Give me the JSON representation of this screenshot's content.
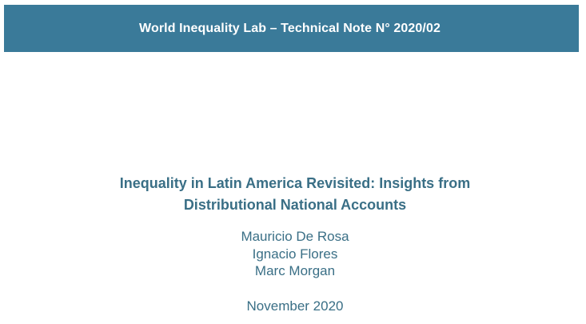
{
  "header": {
    "banner_text": "World Inequality Lab – Technical Note N° 2020/02",
    "banner_color": "#3a7a99"
  },
  "title": {
    "line1": "Inequality in Latin America Revisited: Insights from",
    "line2": "Distributional National Accounts",
    "color": "#3a6f86"
  },
  "authors": [
    "Mauricio De Rosa",
    "Ignacio Flores",
    "Marc Morgan"
  ],
  "date": "November 2020"
}
